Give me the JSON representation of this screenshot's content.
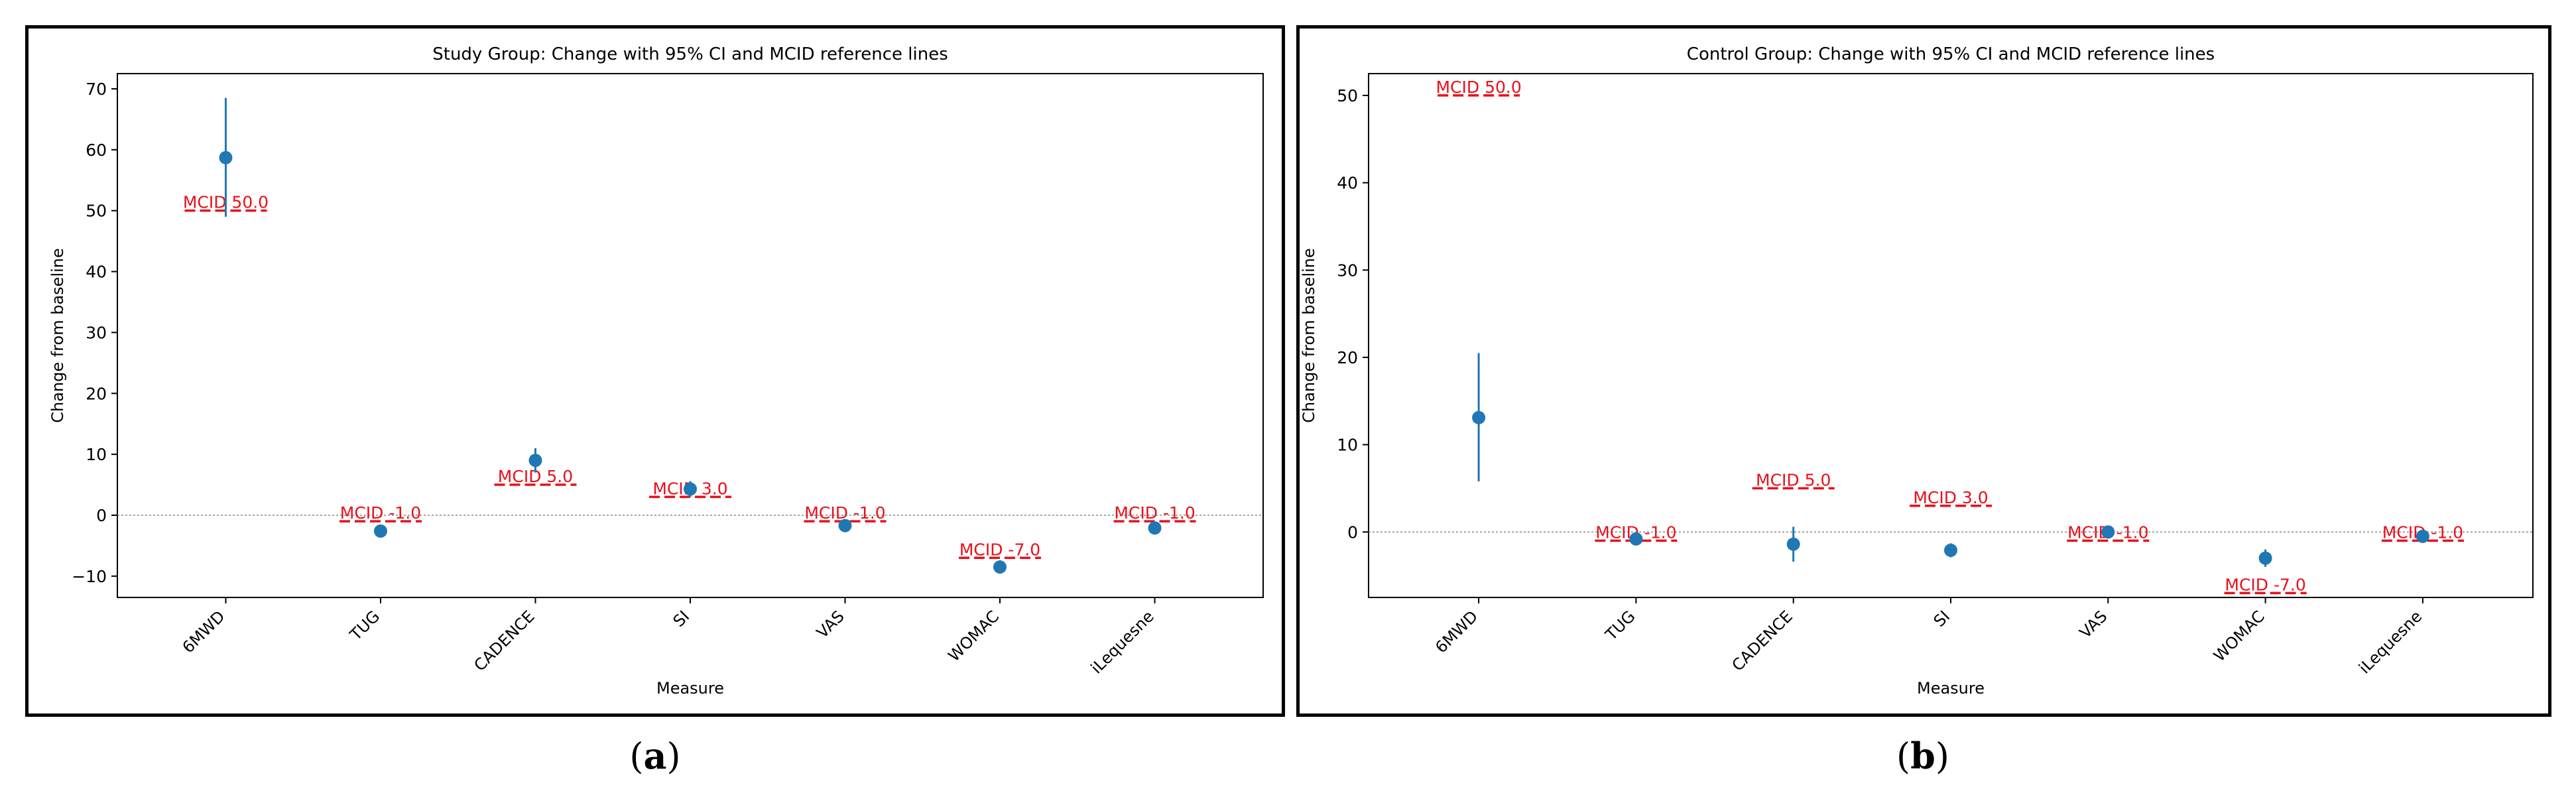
{
  "panels": [
    {
      "id": "a",
      "caption": "a",
      "chart_data": {
        "type": "errorbar",
        "title": "Study Group: Change with 95% CI and MCID reference lines",
        "xlabel": "Measure",
        "ylabel": "Change from baseline",
        "categories": [
          "6MWD",
          "TUG",
          "CADENCE",
          "SI",
          "VAS",
          "WOMAC",
          "iLequesne"
        ],
        "values": [
          58.7,
          -2.6,
          9.0,
          4.3,
          -1.7,
          -8.5,
          -2.1
        ],
        "ci_low": [
          49.0,
          -3.3,
          7.0,
          3.0,
          -2.3,
          -9.6,
          -2.8
        ],
        "ci_high": [
          68.5,
          -1.9,
          11.0,
          5.6,
          -1.1,
          -7.4,
          -1.4
        ],
        "mcid": [
          50.0,
          -1.0,
          5.0,
          3.0,
          -1.0,
          -7.0,
          -1.0
        ],
        "mcid_labels": [
          "MCID 50.0",
          "MCID -1.0",
          "MCID 5.0",
          "MCID 3.0",
          "MCID -1.0",
          "MCID -7.0",
          "MCID -1.0"
        ],
        "yticks": [
          -10,
          0,
          10,
          20,
          30,
          40,
          50,
          60,
          70
        ],
        "ylim": [
          -13.5,
          72.5
        ],
        "zero_line": true
      }
    },
    {
      "id": "b",
      "caption": "b",
      "chart_data": {
        "type": "errorbar",
        "title": "Control Group: Change with 95% CI and MCID reference lines",
        "xlabel": "Measure",
        "ylabel": "Change from baseline",
        "categories": [
          "6MWD",
          "TUG",
          "CADENCE",
          "SI",
          "VAS",
          "WOMAC",
          "iLequesne"
        ],
        "values": [
          13.1,
          -0.8,
          -1.4,
          -2.1,
          0.0,
          -3.0,
          -0.5
        ],
        "ci_low": [
          5.8,
          -1.1,
          -3.4,
          -2.9,
          -0.3,
          -4.0,
          -0.8
        ],
        "ci_high": [
          20.5,
          -0.5,
          0.6,
          -1.3,
          0.3,
          -2.0,
          -0.2
        ],
        "mcid": [
          50.0,
          -1.0,
          5.0,
          3.0,
          -1.0,
          -7.0,
          -1.0
        ],
        "mcid_labels": [
          "MCID 50.0",
          "MCID -1.0",
          "MCID 5.0",
          "MCID 3.0",
          "MCID -1.0",
          "MCID -7.0",
          "MCID -1.0"
        ],
        "yticks": [
          0,
          10,
          20,
          30,
          40,
          50
        ],
        "ylim": [
          -7.5,
          52.5
        ],
        "zero_line": true
      }
    }
  ],
  "colors": {
    "series": "#1f77b4",
    "mcid": "#e8101a",
    "axis": "#000000",
    "zero_line": "#888888"
  }
}
